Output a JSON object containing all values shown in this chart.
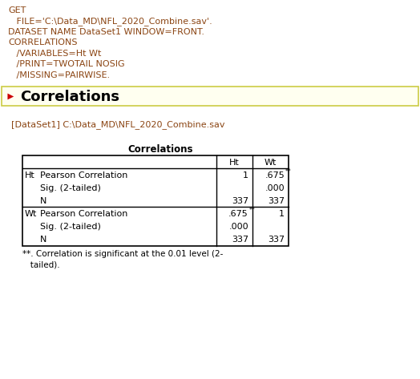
{
  "bg_color": "#ffffff",
  "syntax_lines": [
    "GET",
    "   FILE='C:\\Data_MD\\NFL_2020_Combine.sav'.",
    "DATASET NAME DataSet1 WINDOW=FRONT.",
    "CORRELATIONS",
    "   /VARIABLES=Ht Wt",
    "   /PRINT=TWOTAIL NOSIG",
    "   /MISSING=PAIRWISE."
  ],
  "syntax_color": "#8B4513",
  "section_title": "Correlations",
  "section_title_fontsize": 13,
  "section_title_color": "#000000",
  "arrow_color": "#cc0000",
  "highlight_box_color": "#fffff0",
  "highlight_box_border": "#cccc44",
  "dataset_line": "[DataSet1] C:\\Data_MD\\NFL_2020_Combine.sav",
  "dataset_color": "#8B4513",
  "table_title": "Correlations",
  "footnote_line1": "**. Correlation is significant at the 0.01 level (2-",
  "footnote_line2": "   tailed).",
  "table_border_color": "#000000",
  "font_size_syntax": 8.0,
  "font_size_table": 8.0,
  "font_size_dataset": 8.0,
  "font_size_footnote": 7.5
}
